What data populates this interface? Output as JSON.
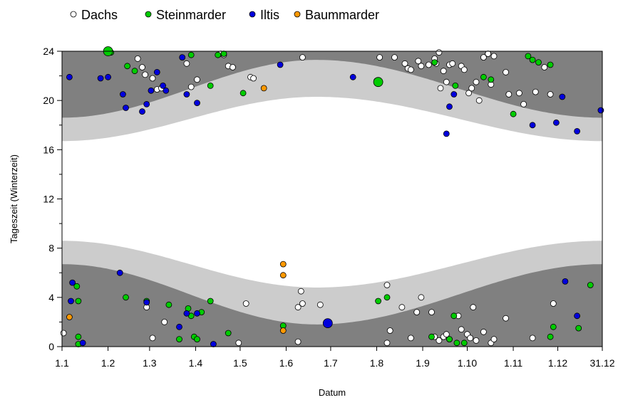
{
  "chart_data": {
    "type": "scatter",
    "xlabel": "Datum",
    "ylabel": "Tageszeit (Winterzeit)",
    "xlim": [
      1,
      365
    ],
    "ylim": [
      0,
      24
    ],
    "x_ticks": [
      {
        "day": 1,
        "label": "1.1"
      },
      {
        "day": 32,
        "label": "1.2"
      },
      {
        "day": 60,
        "label": "1.3"
      },
      {
        "day": 91,
        "label": "1.4"
      },
      {
        "day": 121,
        "label": "1.5"
      },
      {
        "day": 152,
        "label": "1.6"
      },
      {
        "day": 182,
        "label": "1.7"
      },
      {
        "day": 213,
        "label": "1.8"
      },
      {
        "day": 244,
        "label": "1.9"
      },
      {
        "day": 274,
        "label": "1.10"
      },
      {
        "day": 305,
        "label": "1.11"
      },
      {
        "day": 335,
        "label": "1.12"
      },
      {
        "day": 365,
        "label": "31.12"
      }
    ],
    "y_ticks": [
      {
        "value": 0,
        "label": "0"
      },
      {
        "value": 4,
        "label": "4"
      },
      {
        "value": 8,
        "label": "8"
      },
      {
        "value": 12,
        "label": "12"
      },
      {
        "value": 16,
        "label": "16"
      },
      {
        "value": 20,
        "label": "20"
      },
      {
        "value": 24,
        "label": "24"
      }
    ],
    "legend_position": "top",
    "background_bands": {
      "night_color": "#808080",
      "twilight_color": "#cccccc",
      "day_color": "#ffffff",
      "sunrise_hours_jan1": 8.6,
      "sunrise_hours_jun21": 4.8,
      "sunset_hours_jan1": 16.7,
      "sunset_hours_jun21": 20.3,
      "twilight_length_jan1": 1.9,
      "twilight_length_jun21": 3.0
    },
    "series": [
      {
        "name": "Dachs",
        "color": "#ffffff",
        "stroke": "#000000",
        "points": [
          [
            2,
            1.1
          ],
          [
            58,
            3.2
          ],
          [
            62,
            0.7
          ],
          [
            70,
            2.0
          ],
          [
            120,
            0.3
          ],
          [
            125,
            3.5
          ],
          [
            160,
            3.2
          ],
          [
            160,
            0.4
          ],
          [
            162,
            4.5
          ],
          [
            163,
            3.5
          ],
          [
            175,
            3.4
          ],
          [
            220,
            5.0
          ],
          [
            220,
            0.3
          ],
          [
            222,
            1.3
          ],
          [
            230,
            3.2
          ],
          [
            236,
            0.7
          ],
          [
            240,
            2.8
          ],
          [
            243,
            4.0
          ],
          [
            250,
            2.8
          ],
          [
            252,
            0.8
          ],
          [
            255,
            0.5
          ],
          [
            258,
            0.8
          ],
          [
            260,
            1.0
          ],
          [
            262,
            0.6
          ],
          [
            268,
            2.5
          ],
          [
            270,
            1.4
          ],
          [
            274,
            1.0
          ],
          [
            276,
            0.7
          ],
          [
            278,
            3.2
          ],
          [
            280,
            0.5
          ],
          [
            285,
            1.2
          ],
          [
            290,
            0.3
          ],
          [
            292,
            0.6
          ],
          [
            300,
            2.3
          ],
          [
            318,
            0.7
          ],
          [
            332,
            3.5
          ],
          [
            52,
            23.4
          ],
          [
            55,
            22.7
          ],
          [
            57,
            22.1
          ],
          [
            62,
            21.8
          ],
          [
            65,
            20.9
          ],
          [
            68,
            21.0
          ],
          [
            85,
            23.0
          ],
          [
            88,
            21.1
          ],
          [
            92,
            21.7
          ],
          [
            108,
            23.8
          ],
          [
            110,
            23.7
          ],
          [
            113,
            22.8
          ],
          [
            116,
            22.7
          ],
          [
            128,
            21.9
          ],
          [
            130,
            21.8
          ],
          [
            163,
            23.5
          ],
          [
            215,
            23.5
          ],
          [
            225,
            23.5
          ],
          [
            232,
            23.0
          ],
          [
            234,
            22.6
          ],
          [
            236,
            22.5
          ],
          [
            241,
            23.2
          ],
          [
            243,
            22.8
          ],
          [
            248,
            22.9
          ],
          [
            252,
            23.4
          ],
          [
            253,
            23.0
          ],
          [
            255,
            23.9
          ],
          [
            256,
            21.0
          ],
          [
            258,
            22.4
          ],
          [
            260,
            21.5
          ],
          [
            262,
            22.9
          ],
          [
            264,
            23.0
          ],
          [
            270,
            22.8
          ],
          [
            272,
            22.5
          ],
          [
            275,
            20.6
          ],
          [
            277,
            21.0
          ],
          [
            280,
            21.5
          ],
          [
            282,
            20.0
          ],
          [
            285,
            23.5
          ],
          [
            288,
            23.8
          ],
          [
            290,
            21.3
          ],
          [
            292,
            23.6
          ],
          [
            300,
            22.3
          ],
          [
            302,
            20.5
          ],
          [
            309,
            20.6
          ],
          [
            312,
            19.7
          ],
          [
            320,
            20.7
          ],
          [
            326,
            22.7
          ],
          [
            330,
            20.5
          ]
        ]
      },
      {
        "name": "Steinmarder",
        "color": "#00cc00",
        "stroke": "#000000",
        "points": [
          [
            11,
            4.9
          ],
          [
            12,
            3.7
          ],
          [
            12,
            0.8
          ],
          [
            12,
            0.2
          ],
          [
            44,
            4.0
          ],
          [
            58,
            3.7
          ],
          [
            73,
            3.4
          ],
          [
            80,
            0.6
          ],
          [
            86,
            3.1
          ],
          [
            88,
            2.5
          ],
          [
            90,
            0.8
          ],
          [
            92,
            0.6
          ],
          [
            95,
            2.8
          ],
          [
            101,
            3.7
          ],
          [
            113,
            1.1
          ],
          [
            150,
            1.7
          ],
          [
            214,
            3.7
          ],
          [
            220,
            4.0
          ],
          [
            250,
            0.8
          ],
          [
            262,
            0.6
          ],
          [
            265,
            2.5
          ],
          [
            267,
            0.3
          ],
          [
            272,
            0.3
          ],
          [
            330,
            0.8
          ],
          [
            332,
            1.6
          ],
          [
            349,
            1.5
          ],
          [
            357,
            5.0
          ],
          [
            34,
            23.9
          ],
          [
            45,
            22.8
          ],
          [
            50,
            22.4
          ],
          [
            88,
            23.7
          ],
          [
            101,
            21.2
          ],
          [
            106,
            23.7
          ],
          [
            110,
            23.8
          ],
          [
            123,
            20.6
          ],
          [
            213,
            21.6
          ],
          [
            252,
            23.1
          ],
          [
            266,
            21.2
          ],
          [
            285,
            21.9
          ],
          [
            290,
            21.7
          ],
          [
            305,
            18.9
          ],
          [
            315,
            23.6
          ],
          [
            318,
            23.3
          ],
          [
            322,
            23.1
          ],
          [
            330,
            22.9
          ]
        ]
      },
      {
        "name": "Iltis",
        "color": "#0000dd",
        "stroke": "#000000",
        "points": [
          [
            7,
            3.7
          ],
          [
            8,
            5.2
          ],
          [
            15,
            0.3
          ],
          [
            40,
            6.0
          ],
          [
            58,
            3.6
          ],
          [
            80,
            1.6
          ],
          [
            85,
            2.7
          ],
          [
            92,
            2.7
          ],
          [
            103,
            0.2
          ],
          [
            180,
            1.9
          ],
          [
            340,
            5.3
          ],
          [
            348,
            2.5
          ],
          [
            6,
            21.9
          ],
          [
            27,
            21.8
          ],
          [
            32,
            21.9
          ],
          [
            42,
            20.5
          ],
          [
            44,
            19.4
          ],
          [
            55,
            19.1
          ],
          [
            58,
            19.7
          ],
          [
            61,
            20.8
          ],
          [
            65,
            22.3
          ],
          [
            69,
            21.2
          ],
          [
            71,
            20.8
          ],
          [
            82,
            23.5
          ],
          [
            85,
            20.5
          ],
          [
            92,
            19.8
          ],
          [
            148,
            22.9
          ],
          [
            197,
            21.9
          ],
          [
            260,
            17.3
          ],
          [
            262,
            19.5
          ],
          [
            265,
            20.5
          ],
          [
            318,
            18.0
          ],
          [
            334,
            18.2
          ],
          [
            338,
            20.3
          ],
          [
            348,
            17.5
          ],
          [
            364,
            19.2
          ]
        ]
      },
      {
        "name": "Baummarder",
        "color": "#ff9900",
        "stroke": "#000000",
        "points": [
          [
            6,
            2.4
          ],
          [
            150,
            6.7
          ],
          [
            150,
            5.8
          ],
          [
            150,
            1.3
          ],
          [
            137,
            21.0
          ]
        ]
      }
    ],
    "highlight_points": [
      {
        "series": "Steinmarder",
        "x": 32,
        "y": 24.0
      },
      {
        "series": "Steinmarder",
        "x": 214,
        "y": 21.5
      },
      {
        "series": "Iltis",
        "x": 180,
        "y": 1.9
      }
    ]
  }
}
